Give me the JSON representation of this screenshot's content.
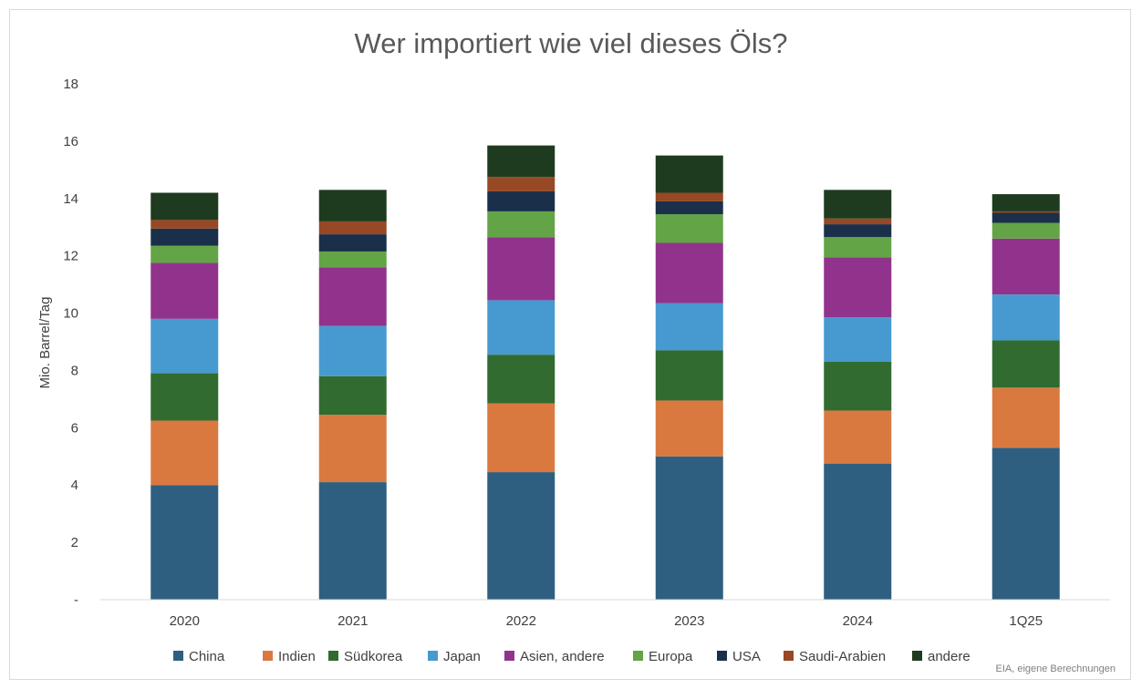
{
  "chart_data": {
    "type": "bar",
    "stacked": true,
    "title": "Wer importiert wie viel dieses Öls?",
    "xlabel": "",
    "ylabel": "Mio. Barrel/Tag",
    "ylim": [
      0,
      18
    ],
    "yticks": [
      0,
      2,
      4,
      6,
      8,
      10,
      12,
      14,
      16,
      18
    ],
    "ytick_labels": [
      "-",
      "2",
      "4",
      "6",
      "8",
      "10",
      "12",
      "14",
      "16",
      "18"
    ],
    "grid": false,
    "legend_position": "bottom",
    "categories": [
      "2020",
      "2021",
      "2022",
      "2023",
      "2024",
      "1Q25"
    ],
    "series": [
      {
        "name": "China",
        "color": "#2e5f80",
        "values": [
          4.0,
          4.1,
          4.45,
          5.0,
          4.75,
          5.3
        ]
      },
      {
        "name": "Indien",
        "color": "#d97940",
        "values": [
          2.25,
          2.35,
          2.4,
          1.95,
          1.85,
          2.1
        ]
      },
      {
        "name": "Südkorea",
        "color": "#316b30",
        "values": [
          1.65,
          1.35,
          1.7,
          1.75,
          1.7,
          1.65
        ]
      },
      {
        "name": "Japan",
        "color": "#479ad0",
        "values": [
          1.9,
          1.75,
          1.9,
          1.65,
          1.55,
          1.6
        ]
      },
      {
        "name": "Asien, andere",
        "color": "#91338d",
        "values": [
          1.95,
          2.05,
          2.2,
          2.1,
          2.1,
          1.95
        ]
      },
      {
        "name": "Europa",
        "color": "#63a446",
        "values": [
          0.6,
          0.55,
          0.9,
          1.0,
          0.7,
          0.55
        ]
      },
      {
        "name": "USA",
        "color": "#1a304a",
        "values": [
          0.6,
          0.6,
          0.7,
          0.45,
          0.45,
          0.35
        ]
      },
      {
        "name": "Saudi-Arabien",
        "color": "#974824",
        "values": [
          0.3,
          0.45,
          0.5,
          0.3,
          0.2,
          0.05
        ]
      },
      {
        "name": "andere",
        "color": "#1f3b1f",
        "values": [
          0.95,
          1.1,
          1.1,
          1.3,
          1.0,
          0.6
        ]
      }
    ],
    "source_note": "EIA, eigene Berechnungen"
  }
}
